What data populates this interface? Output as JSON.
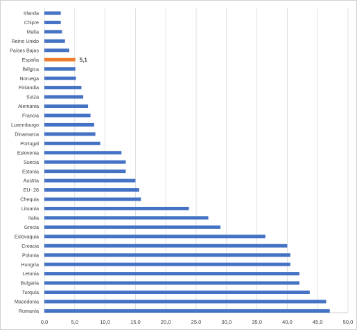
{
  "chart_data": {
    "type": "bar",
    "orientation": "horizontal",
    "categories": [
      "Irlanda",
      "Chipre",
      "Malta",
      "Reino Unido",
      "Países Bajos",
      "España",
      "Bélgica",
      "Noruega",
      "Finlandia",
      "Suiza",
      "Alemania",
      "Francia",
      "Luxemburgo",
      "Dinamarca",
      "Portugal",
      "Eslovenia",
      "Suecia",
      "Estonia",
      "Austria",
      "EU- 28",
      "Chequia",
      "Lituania",
      "Italia",
      "Grecia",
      "Eslovaquia",
      "Croacia",
      "Polonia",
      "Hungría",
      "Letonia",
      "Bulgaria",
      "Turquía",
      "Macedonia",
      "Rumanía"
    ],
    "values": [
      2.7,
      2.7,
      2.9,
      3.4,
      4.1,
      5.1,
      5.1,
      5.2,
      6.1,
      6.4,
      7.2,
      7.6,
      8.2,
      8.4,
      9.2,
      12.7,
      13.4,
      13.4,
      15.0,
      15.6,
      15.9,
      23.8,
      27.0,
      29.0,
      36.4,
      40.0,
      40.5,
      40.5,
      42.0,
      42.0,
      43.7,
      46.4,
      47.0
    ],
    "highlight": {
      "category": "España",
      "label": "5,1",
      "color": "#ed7d31"
    },
    "bar_color": "#4472c4",
    "xlim": [
      0,
      50
    ],
    "xticks": [
      "0,0",
      "5,0",
      "10,0",
      "15,0",
      "20,0",
      "25,0",
      "30,0",
      "35,0",
      "40,0",
      "45,0",
      "50,0"
    ],
    "grid": "vertical",
    "title": "",
    "xlabel": "",
    "ylabel": ""
  }
}
